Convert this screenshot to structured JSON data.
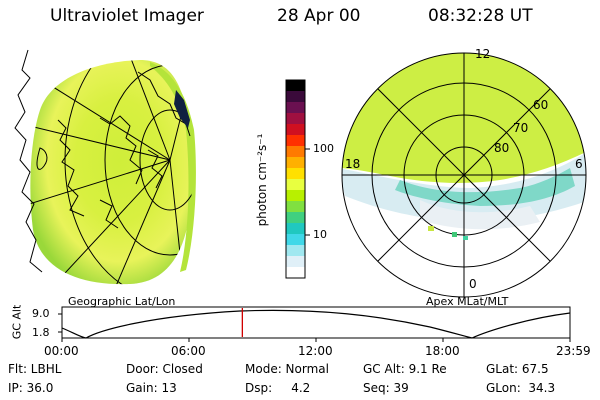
{
  "header": {
    "title": "Ultraviolet Imager",
    "date": "28 Apr 00",
    "time": "08:32:28 UT"
  },
  "geo_panel": {
    "caption": "Geographic Lat/Lon"
  },
  "polar_panel": {
    "caption": "Apex MLat/MLT",
    "mlt_labels": {
      "top": "12",
      "bottom": "0",
      "left": "18",
      "right": "6"
    },
    "lat_labels": [
      "60",
      "70",
      "80"
    ]
  },
  "colorbar": {
    "unit_label": "photon cm⁻²s⁻¹",
    "tick_100": "100",
    "tick_10": "10",
    "colors": [
      "#000000",
      "#3a0a3a",
      "#6a1050",
      "#a01040",
      "#d01020",
      "#ff3000",
      "#ff7a00",
      "#ffb000",
      "#ffe000",
      "#e8ff40",
      "#b8f000",
      "#80e040",
      "#40d080",
      "#20c8c0",
      "#40d8e8",
      "#a0e8f0",
      "#e0f0f8",
      "#ffffff"
    ]
  },
  "timeline": {
    "y_axis_title": "GC Alt",
    "y_ticks": [
      "9.0",
      "1.8"
    ],
    "x_ticks": [
      "00:00",
      "06:00",
      "12:00",
      "18:00",
      "23:59"
    ],
    "current_fraction": 0.355,
    "marker_color": "#d00000"
  },
  "status": {
    "row1": {
      "filter": "Flt: LBHL",
      "door": "Door: Closed",
      "mode": "Mode: Normal",
      "gc_alt": "GC Alt: 9.1 Re",
      "glat": "GLat:  67.5"
    },
    "row2": {
      "ip": "IP: 36.0",
      "gain": "Gain: 13",
      "dsp": "Dsp:     4.2",
      "seq": "Seq: 39",
      "glon": "GLon:  34.3"
    }
  }
}
